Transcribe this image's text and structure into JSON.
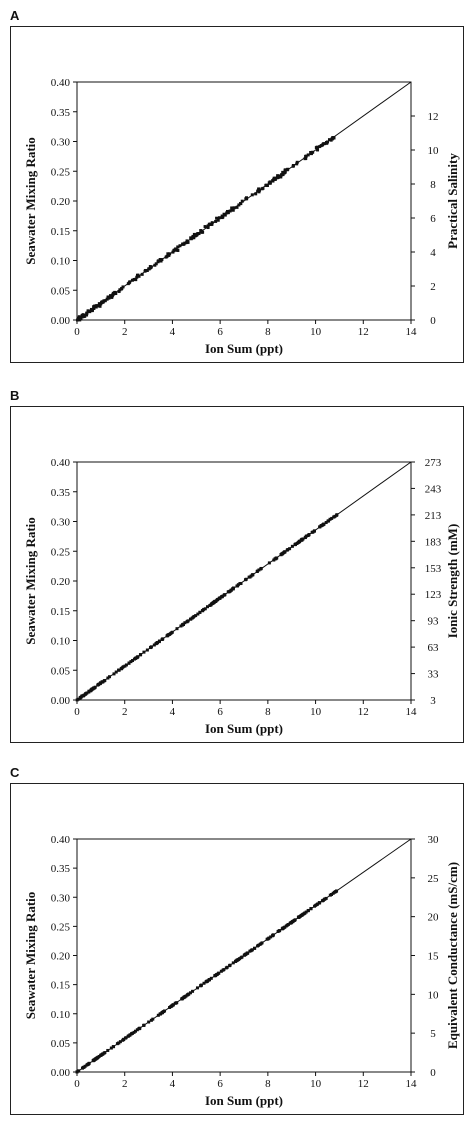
{
  "chart_data": [
    {
      "panel_label": "A",
      "type": "scatter",
      "xlabel": "Ion Sum (ppt)",
      "ylabel": "Seawater Mixing Ratio",
      "y2label": "Practical Salinity",
      "xlim": [
        0,
        14
      ],
      "ylim": [
        0,
        0.4
      ],
      "x_ticks": [
        "0",
        "2",
        "4",
        "6",
        "8",
        "10",
        "12",
        "14"
      ],
      "y_ticks": [
        "0.00",
        "0.05",
        "0.10",
        "0.15",
        "0.20",
        "0.25",
        "0.30",
        "0.35",
        "0.40"
      ],
      "y2_ticks": [
        "0",
        "2",
        "4",
        "6",
        "8",
        "10",
        "12"
      ],
      "y2_tick_values": [
        0,
        0.05714,
        0.11429,
        0.17143,
        0.22857,
        0.28571,
        0.34286
      ],
      "line": {
        "x": [
          0,
          14
        ],
        "y": [
          0,
          0.4
        ]
      },
      "scatter": 0.006,
      "grid": false
    },
    {
      "panel_label": "B",
      "type": "scatter",
      "xlabel": "Ion Sum (ppt)",
      "ylabel": "Seawater Mixing Ratio",
      "y2label": "Ionic Strength (mM)",
      "xlim": [
        0,
        14
      ],
      "ylim": [
        0,
        0.4
      ],
      "x_ticks": [
        "0",
        "2",
        "4",
        "6",
        "8",
        "10",
        "12",
        "14"
      ],
      "y_ticks": [
        "0.00",
        "0.05",
        "0.10",
        "0.15",
        "0.20",
        "0.25",
        "0.30",
        "0.35",
        "0.40"
      ],
      "y2_ticks": [
        "3",
        "33",
        "63",
        "93",
        "123",
        "153",
        "183",
        "213",
        "243",
        "273"
      ],
      "y2_tick_values": [
        0,
        0.0444,
        0.0889,
        0.1333,
        0.1778,
        0.2222,
        0.2667,
        0.3111,
        0.3556,
        0.4
      ],
      "line": {
        "x": [
          0,
          14
        ],
        "y": [
          0,
          0.4
        ]
      },
      "scatter": 0.0015,
      "grid": false
    },
    {
      "panel_label": "C",
      "type": "scatter",
      "xlabel": "Ion Sum (ppt)",
      "ylabel": "Seawater Mixing Ratio",
      "y2label": "Equivalent Conductance (mS/cm)",
      "xlim": [
        0,
        14
      ],
      "ylim": [
        0,
        0.4
      ],
      "x_ticks": [
        "0",
        "2",
        "4",
        "6",
        "8",
        "10",
        "12",
        "14"
      ],
      "y_ticks": [
        "0.00",
        "0.05",
        "0.10",
        "0.15",
        "0.20",
        "0.25",
        "0.30",
        "0.35",
        "0.40"
      ],
      "y2_ticks": [
        "0",
        "5",
        "10",
        "15",
        "20",
        "25",
        "30"
      ],
      "y2_tick_values": [
        0,
        0.0667,
        0.1333,
        0.2,
        0.2667,
        0.3333,
        0.4
      ],
      "line": {
        "x": [
          0,
          14
        ],
        "y": [
          0,
          0.4
        ]
      },
      "scatter": 0.0008,
      "grid": false
    }
  ]
}
